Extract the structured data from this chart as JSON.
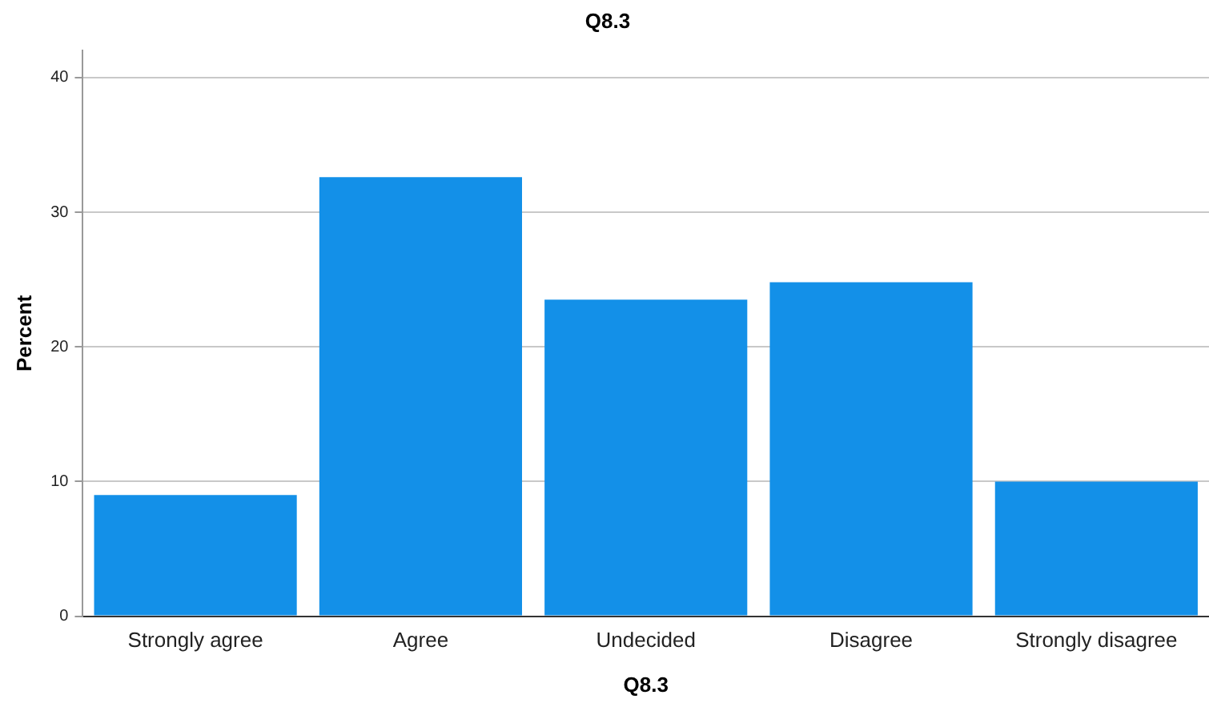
{
  "chart_data": {
    "type": "bar",
    "title": "Q8.3",
    "xlabel": "Q8.3",
    "ylabel": "Percent",
    "categories": [
      "Strongly agree",
      "Agree",
      "Undecided",
      "Disagree",
      "Strongly disagree"
    ],
    "values": [
      9.0,
      32.6,
      23.5,
      24.8,
      10.0
    ],
    "color": "#1390e8",
    "ylim": [
      0,
      42
    ],
    "yticks": [
      0,
      10,
      20,
      30,
      40
    ],
    "grid": "y",
    "legend": false
  }
}
